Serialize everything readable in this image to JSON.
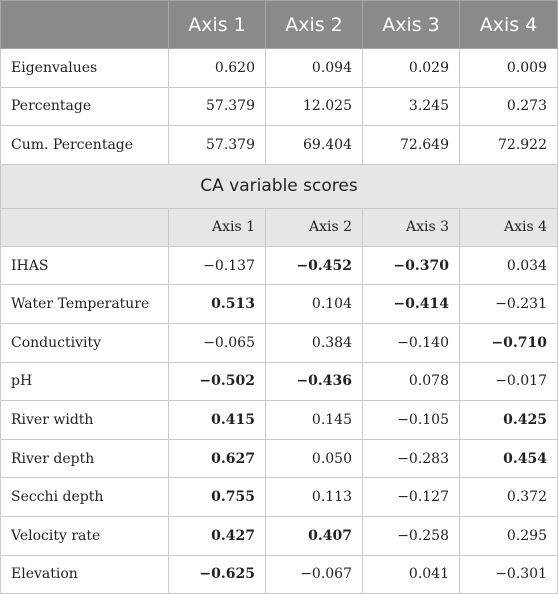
{
  "header": {
    "blank": "",
    "axes": [
      "Axis 1",
      "Axis 2",
      "Axis 3",
      "Axis 4"
    ]
  },
  "eigen_rows": [
    {
      "label": "Eigenvalues",
      "values": [
        "0.620",
        "0.094",
        "0.029",
        "0.009"
      ]
    },
    {
      "label": "Percentage",
      "values": [
        "57.379",
        "12.025",
        "3.245",
        "0.273"
      ]
    },
    {
      "label": "Cum. Percentage",
      "values": [
        "57.379",
        "69.404",
        "72.649",
        "72.922"
      ]
    }
  ],
  "section_title": "CA variable scores",
  "subheader": {
    "axes": [
      "Axis 1",
      "Axis 2",
      "Axis 3",
      "Axis 4"
    ]
  },
  "variable_rows": [
    {
      "label": "IHAS",
      "values": [
        "−0.137",
        "−0.452",
        "−0.370",
        "0.034"
      ],
      "bold": [
        false,
        true,
        true,
        false
      ]
    },
    {
      "label": "Water Temperature",
      "values": [
        "0.513",
        "0.104",
        "−0.414",
        "−0.231"
      ],
      "bold": [
        true,
        false,
        true,
        false
      ]
    },
    {
      "label": "Conductivity",
      "values": [
        "−0.065",
        "0.384",
        "−0.140",
        "−0.710"
      ],
      "bold": [
        false,
        false,
        false,
        true
      ]
    },
    {
      "label": "pH",
      "values": [
        "−0.502",
        "−0.436",
        "0.078",
        "−0.017"
      ],
      "bold": [
        true,
        true,
        false,
        false
      ]
    },
    {
      "label": "River width",
      "values": [
        "0.415",
        "0.145",
        "−0.105",
        "0.425"
      ],
      "bold": [
        true,
        false,
        false,
        true
      ]
    },
    {
      "label": "River depth",
      "values": [
        "0.627",
        "0.050",
        "−0.283",
        "0.454"
      ],
      "bold": [
        true,
        false,
        false,
        true
      ]
    },
    {
      "label": "Secchi depth",
      "values": [
        "0.755",
        "0.113",
        "−0.127",
        "0.372"
      ],
      "bold": [
        true,
        false,
        false,
        false
      ]
    },
    {
      "label": "Velocity rate",
      "values": [
        "0.427",
        "0.407",
        "−0.258",
        "0.295"
      ],
      "bold": [
        true,
        true,
        false,
        false
      ]
    },
    {
      "label": "Elevation",
      "values": [
        "−0.625",
        "−0.067",
        "0.041",
        "−0.301"
      ],
      "bold": [
        true,
        false,
        false,
        false
      ]
    }
  ],
  "colors": {
    "header_bg": "#8a8a8a",
    "section_bg": "#e6e6e6",
    "border": "#c8c8c8"
  }
}
